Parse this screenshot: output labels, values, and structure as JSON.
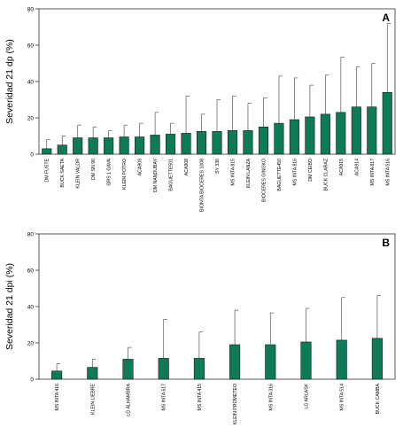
{
  "colors": {
    "bar_fill": "#0e7a58",
    "bar_stroke": "#1a1a1a",
    "axis": "#333333",
    "error": "#555555"
  },
  "chart_data": [
    {
      "type": "bar",
      "panel_label": "A",
      "ylabel": "Severidad 21 dp (%)",
      "ylim": [
        0,
        80
      ],
      "yticks": [
        0,
        20,
        40,
        60,
        80
      ],
      "grid": false,
      "categories": [
        "DM FUSTE",
        "BUCK SAETA",
        "KLEIN VALOR",
        "DM SN 90",
        "ORS 1 GAVA",
        "KLEIN POTRO",
        "ACA909",
        "DM NANDUBAY",
        "BAGUETTE501",
        "ACA908",
        "BIONTA BIOCERES 1008",
        "SY 330",
        "MS INTA 815",
        "KLEIN LANZA",
        "BIOCERES GINGKO",
        "BAGUETTE450",
        "MS INTA 816",
        "DM CEIBO",
        "BUCK CLARAZ",
        "ACA915",
        "ACA914",
        "MS INTA 817",
        "MS INTA 516"
      ],
      "values": [
        3,
        5,
        9,
        9,
        9,
        9.5,
        9.5,
        10.5,
        11,
        11.5,
        12.5,
        12.5,
        13,
        13,
        15,
        17,
        19,
        20.5,
        22,
        23,
        26,
        26,
        34
      ],
      "error_upper": [
        8,
        10,
        16,
        15,
        13,
        16,
        17,
        23,
        17,
        32,
        22,
        30,
        32,
        28,
        31,
        43,
        42,
        38,
        43.5,
        53.5,
        48,
        50,
        72
      ]
    },
    {
      "type": "bar",
      "panel_label": "B",
      "ylabel": "Severidad 21 dpi (%)",
      "ylim": [
        0,
        80
      ],
      "yticks": [
        0,
        20,
        40,
        60,
        80
      ],
      "grid": false,
      "categories": [
        "MS INTA 416",
        "KLEIN LIEBRE",
        "LG ALHAMBRA",
        "MS INTA 617",
        "MS INTA 415",
        "KLEIN PROMETEO",
        "MS INTA 316",
        "LG ARLASK",
        "MS INTA 514",
        "BUCK CAMBA"
      ],
      "values": [
        4.5,
        6.5,
        11,
        11.5,
        11.5,
        19,
        19,
        20.5,
        21.5,
        22.5
      ],
      "error_upper": [
        8.5,
        11,
        17.5,
        33,
        26,
        38,
        36.5,
        39,
        45,
        46
      ]
    }
  ]
}
